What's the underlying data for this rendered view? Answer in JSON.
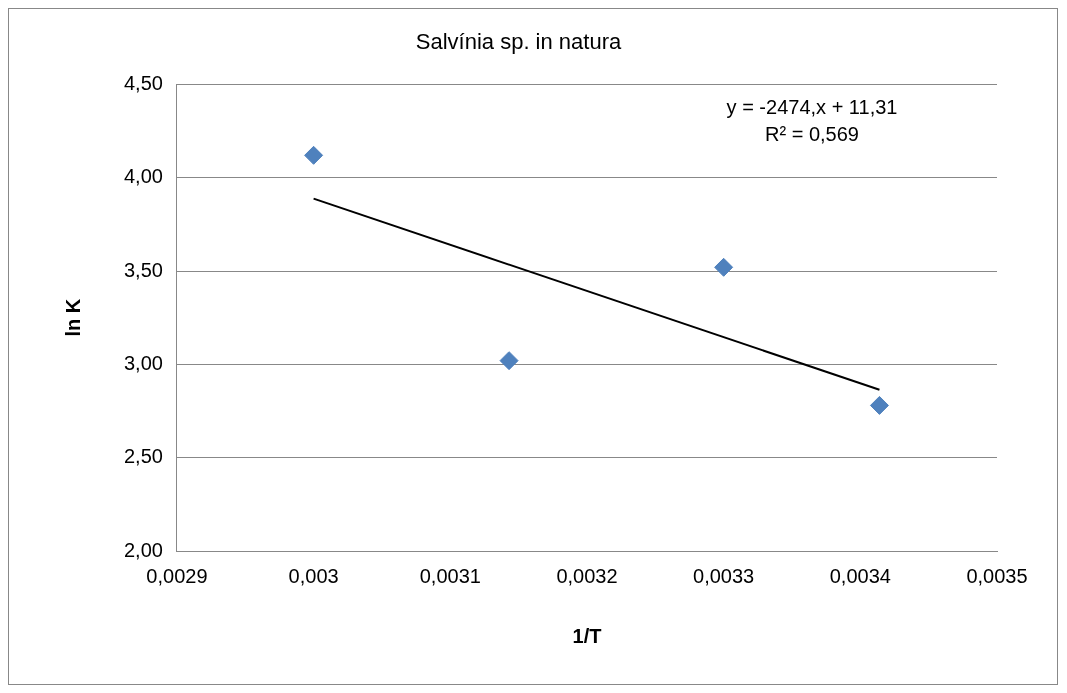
{
  "chart_data": {
    "type": "scatter",
    "title": "Salvínia sp. in natura",
    "xlabel": "1/T",
    "ylabel": "ln K",
    "series": [
      {
        "color": "#4f81bd",
        "marker": "diamond",
        "x": [
          0.003,
          0.003143,
          0.0033,
          0.003414
        ],
        "values": [
          4.12,
          3.02,
          3.52,
          2.78
        ]
      },
      {
        "type": "line",
        "color": "#000000",
        "marker": "none",
        "x": [
          0.003,
          0.003414
        ],
        "values": [
          3.888,
          2.864
        ]
      }
    ],
    "xlim": [
      0.0029,
      0.0035
    ],
    "xticks": [
      {
        "value": 0.0029,
        "label": "0,0029"
      },
      {
        "value": 0.003,
        "label": "0,003"
      },
      {
        "value": 0.0031,
        "label": "0,0031"
      },
      {
        "value": 0.0032,
        "label": "0,0032"
      },
      {
        "value": 0.0033,
        "label": "0,0033"
      },
      {
        "value": 0.0034,
        "label": "0,0034"
      },
      {
        "value": 0.0035,
        "label": "0,0035"
      }
    ],
    "ylim": [
      2,
      4.5
    ],
    "yticks": [
      {
        "value": 2,
        "label": "2,00"
      },
      {
        "value": 2.5,
        "label": "2,50"
      },
      {
        "value": 3,
        "label": "3,00"
      },
      {
        "value": 3.5,
        "label": "3,50"
      },
      {
        "value": 4,
        "label": "4,00"
      },
      {
        "value": 4.5,
        "label": "4,50"
      }
    ],
    "annotations": [
      "y = -2474,x + 11,31",
      "R² = 0,569"
    ],
    "grid": "y",
    "legend": false
  }
}
